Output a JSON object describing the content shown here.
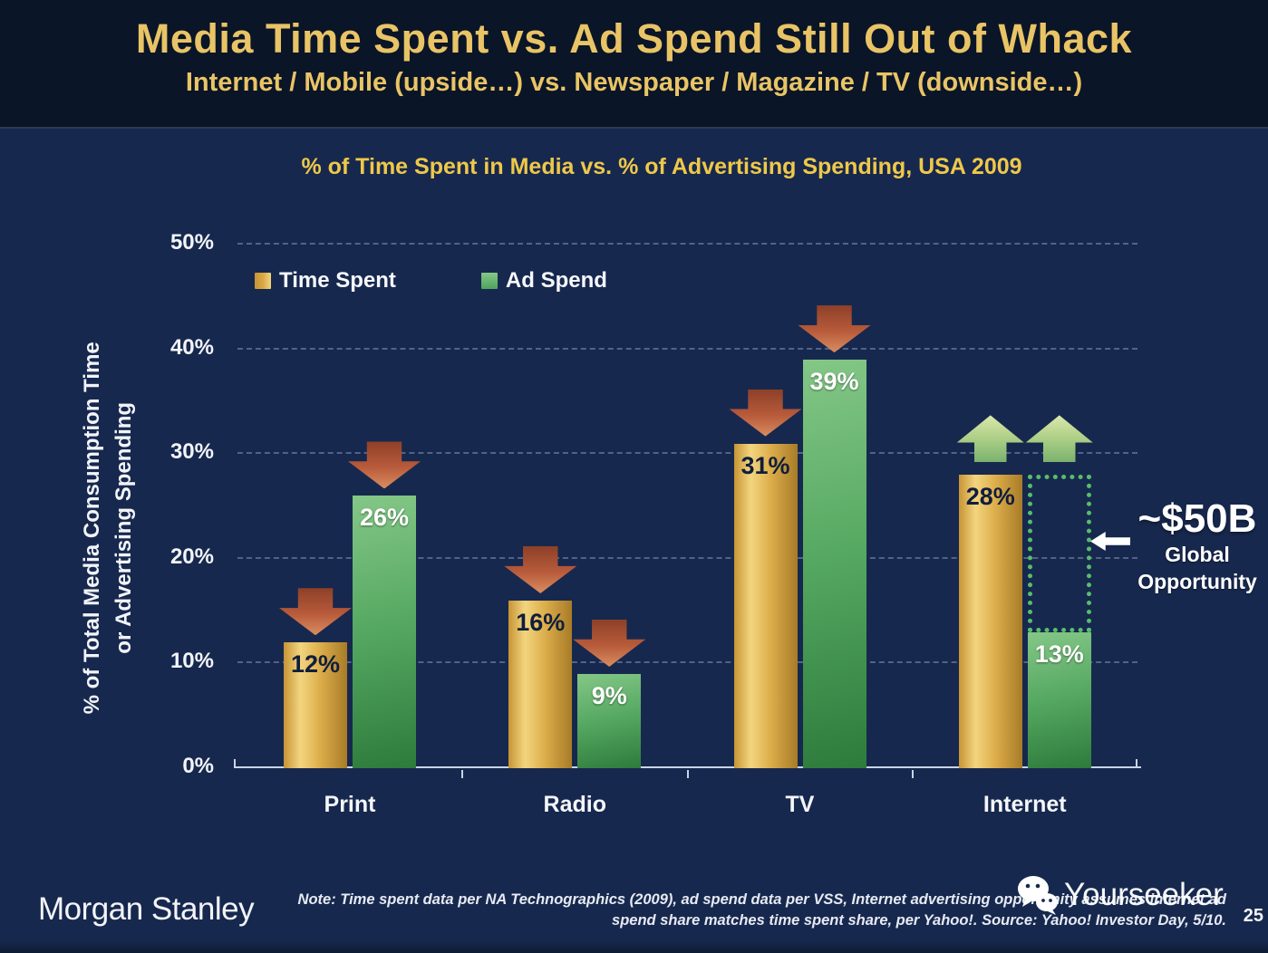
{
  "header": {
    "title": "Media Time Spent vs. Ad Spend Still Out of Whack",
    "subtitle": "Internet / Mobile (upside…) vs. Newspaper / Magazine / TV (downside…)"
  },
  "chart": {
    "title": "% of Time Spent in Media vs. % of Advertising Spending, USA 2009",
    "y_axis_label": [
      "% of Total Media Consumption Time",
      "or Advertising Spending"
    ],
    "legend": [
      {
        "label": "Time Spent",
        "color": "#D9A843"
      },
      {
        "label": "Ad Spend",
        "color": "#4DA45C"
      }
    ]
  },
  "chart_data": {
    "type": "bar",
    "title": "% of Time Spent in Media vs. % of Advertising Spending, USA 2009",
    "categories": [
      "Print",
      "Radio",
      "TV",
      "Internet"
    ],
    "series": [
      {
        "name": "Time Spent",
        "values": [
          12,
          16,
          31,
          28
        ],
        "color": "#D9A843",
        "label_color": "dark"
      },
      {
        "name": "Ad Spend",
        "values": [
          26,
          9,
          39,
          13
        ],
        "color": "#4DA45C",
        "label_color": "light"
      }
    ],
    "value_suffix": "%",
    "ylabel": "% of Total Media Consumption Time or Advertising Spending",
    "ylim": [
      0,
      50
    ],
    "yticks": [
      0,
      10,
      20,
      30,
      40,
      50
    ],
    "ytick_suffix": "%",
    "grid": "dashed-horizontal",
    "legend_position": "inside-top-left",
    "category_trend_arrows": [
      "down",
      "down",
      "down",
      "up"
    ],
    "opportunity_box": {
      "category": "Internet",
      "series": "Ad Spend",
      "from_value": 13,
      "to_value": 28
    },
    "callout": {
      "value": "~$50B",
      "label_line1": "Global",
      "label_line2": "Opportunity",
      "arrow": "left"
    }
  },
  "footer": {
    "logo": "Morgan Stanley",
    "note_line1": "Note: Time spent data per NA Technographics (2009), ad spend data per VSS, Internet advertising opportunity assumes internet ad",
    "note_line2": "spend share matches time spent share, per Yahoo!. Source: Yahoo! Investor Day, 5/10.",
    "watermark": "Yourseeker",
    "page_number": "25"
  }
}
